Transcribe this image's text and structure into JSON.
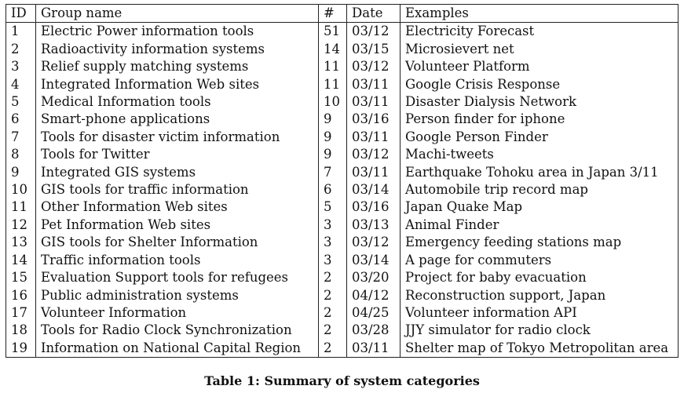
{
  "table": {
    "headers": {
      "id": "ID",
      "group_name": "Group name",
      "count": "#",
      "date": "Date",
      "examples": "Examples"
    },
    "rows": [
      {
        "id": "1",
        "group_name": "Electric Power information tools",
        "count": "51",
        "date": "03/12",
        "example": "Electricity Forecast"
      },
      {
        "id": "2",
        "group_name": "Radioactivity information systems",
        "count": "14",
        "date": "03/15",
        "example": "Microsievert net"
      },
      {
        "id": "3",
        "group_name": "Relief supply matching systems",
        "count": "11",
        "date": "03/12",
        "example": "Volunteer Platform"
      },
      {
        "id": "4",
        "group_name": "Integrated Information Web sites",
        "count": "11",
        "date": "03/11",
        "example": "Google Crisis Response"
      },
      {
        "id": "5",
        "group_name": "Medical Information tools",
        "count": "10",
        "date": "03/11",
        "example": "Disaster Dialysis Network"
      },
      {
        "id": "6",
        "group_name": "Smart-phone applications",
        "count": "9",
        "date": "03/16",
        "example": "Person finder for iphone"
      },
      {
        "id": "7",
        "group_name": "Tools for disaster victim information",
        "count": "9",
        "date": "03/11",
        "example": "Google Person Finder"
      },
      {
        "id": "8",
        "group_name": "Tools for Twitter",
        "count": "9",
        "date": "03/12",
        "example": "Machi-tweets"
      },
      {
        "id": "9",
        "group_name": "Integrated GIS systems",
        "count": "7",
        "date": "03/11",
        "example": "Earthquake Tohoku area in Japan 3/11"
      },
      {
        "id": "10",
        "group_name": "GIS tools for traffic information",
        "count": "6",
        "date": "03/14",
        "example": "Automobile trip record map"
      },
      {
        "id": "11",
        "group_name": "Other Information Web sites",
        "count": "5",
        "date": "03/16",
        "example": "Japan Quake Map"
      },
      {
        "id": "12",
        "group_name": "Pet Information Web sites",
        "count": "3",
        "date": "03/13",
        "example": "Animal Finder"
      },
      {
        "id": "13",
        "group_name": "GIS tools for Shelter Information",
        "count": "3",
        "date": "03/12",
        "example": "Emergency feeding stations map"
      },
      {
        "id": "14",
        "group_name": "Traffic information tools",
        "count": "3",
        "date": "03/14",
        "example": "A page for commuters"
      },
      {
        "id": "15",
        "group_name": "Evaluation Support tools for refugees",
        "count": "2",
        "date": "03/20",
        "example": "Project for baby evacuation"
      },
      {
        "id": "16",
        "group_name": "Public administration systems",
        "count": "2",
        "date": "04/12",
        "example": "Reconstruction support, Japan"
      },
      {
        "id": "17",
        "group_name": "Volunteer Information",
        "count": "2",
        "date": "04/25",
        "example": "Volunteer information API"
      },
      {
        "id": "18",
        "group_name": "Tools for Radio Clock Synchronization",
        "count": "2",
        "date": "03/28",
        "example": "JJY simulator for radio clock"
      },
      {
        "id": "19",
        "group_name": "Information on National Capital Region",
        "count": "2",
        "date": "03/11",
        "example": "Shelter map of Tokyo Metropolitan area"
      }
    ]
  },
  "caption": "Table 1: Summary of system categories"
}
